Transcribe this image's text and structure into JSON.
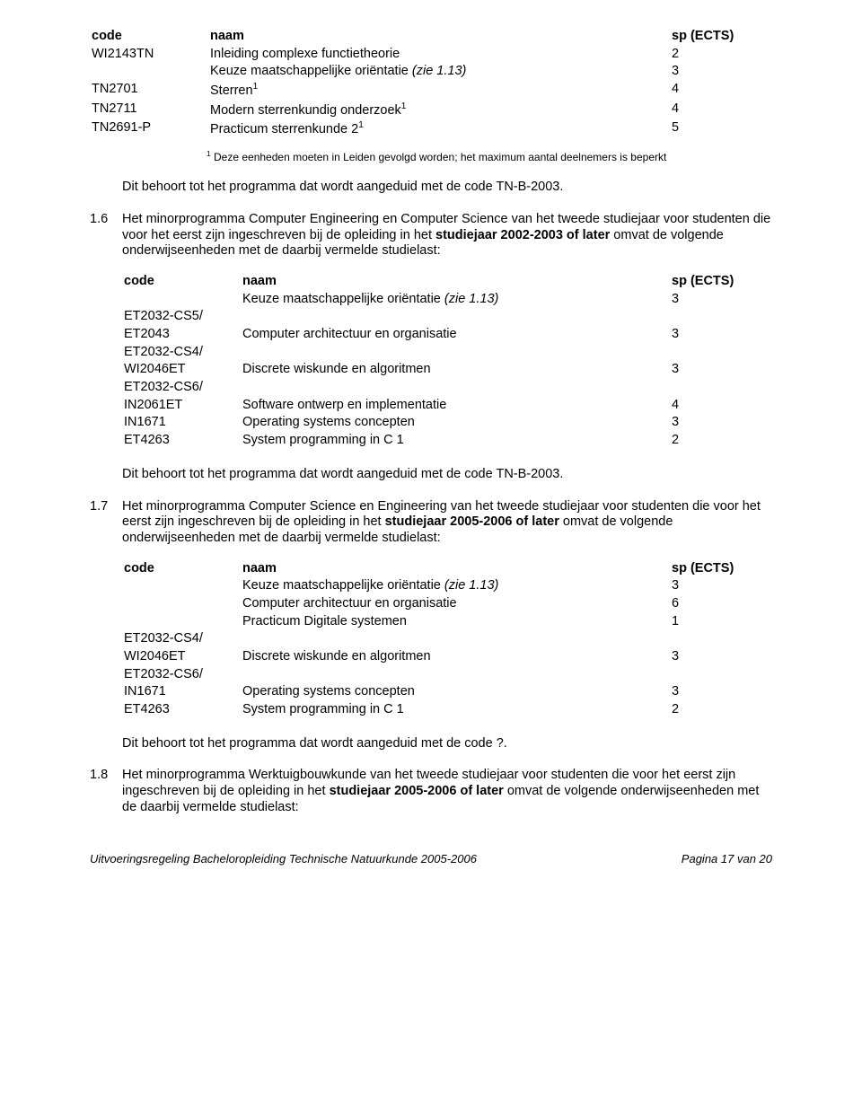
{
  "table1": {
    "header": {
      "code": "code",
      "naam": "naam",
      "sp": "sp (ECTS)"
    },
    "rows": [
      {
        "code": "WI2143TN",
        "naam": "Inleiding complexe functietheorie",
        "sp": "2"
      },
      {
        "code": "",
        "naam_pre": "Keuze maatschappelijke oriëntatie ",
        "naam_it": "(zie 1.13)",
        "sp": "3"
      },
      {
        "code": "TN2701",
        "naam": "Sterren",
        "super": "1",
        "sp": "4"
      },
      {
        "code": "TN2711",
        "naam": "Modern sterrenkundig onderzoek",
        "super": "1",
        "sp": "4"
      },
      {
        "code": "TN2691-P",
        "naam": "Practicum sterrenkunde 2",
        "super": "1",
        "sp": "5"
      }
    ]
  },
  "footnote1": {
    "sup": "1",
    "text": " Deze eenheden moeten in Leiden gevolgd worden; het maximum aantal deelnemers is beperkt"
  },
  "line_tnb2003": "Dit behoort tot het programma dat wordt aangeduid met de code TN-B-2003.",
  "sec16": {
    "num": "1.6",
    "text_pre": "Het minorprogramma Computer Engineering en Computer Science van het tweede studiejaar voor studenten die voor het eerst zijn ingeschreven bij de opleiding in het ",
    "bold": "studiejaar 2002-2003 of later",
    "text_post": " omvat de volgende onderwijseenheden met de daarbij vermelde studielast:"
  },
  "table2": {
    "header": {
      "code": "code",
      "naam": "naam",
      "sp": "sp (ECTS)"
    },
    "rows": [
      {
        "code": "",
        "naam_pre": "Keuze maatschappelijke oriëntatie ",
        "naam_it": "(zie 1.13)",
        "sp": "3"
      },
      {
        "code": "ET2032-CS5/",
        "naam": "",
        "sp": ""
      },
      {
        "code": "ET2043",
        "naam": "Computer architectuur en organisatie",
        "sp": "3"
      },
      {
        "code": "ET2032-CS4/",
        "naam": "",
        "sp": ""
      },
      {
        "code": "WI2046ET",
        "naam": "Discrete wiskunde en algoritmen",
        "sp": "3"
      },
      {
        "code": "ET2032-CS6/",
        "naam": "",
        "sp": ""
      },
      {
        "code": "IN2061ET",
        "naam": "Software ontwerp en implementatie",
        "sp": "4"
      },
      {
        "code": "IN1671",
        "naam": "Operating systems concepten",
        "sp": "3"
      },
      {
        "code": "ET4263",
        "naam": "System programming in C 1",
        "sp": "2"
      }
    ]
  },
  "sec17": {
    "num": "1.7",
    "text_pre": "Het minorprogramma Computer Science en Engineering van het tweede studiejaar voor studenten die voor het eerst zijn ingeschreven bij de opleiding in het ",
    "bold": "studiejaar 2005-2006 of later",
    "text_post": " omvat de volgende onderwijseenheden met de daarbij vermelde studielast:"
  },
  "table3": {
    "header": {
      "code": "code",
      "naam": "naam",
      "sp": "sp (ECTS)"
    },
    "rows": [
      {
        "code": "",
        "naam_pre": "Keuze maatschappelijke oriëntatie ",
        "naam_it": "(zie 1.13)",
        "sp": "3"
      },
      {
        "code": "",
        "naam": "Computer architectuur en organisatie",
        "sp": "6"
      },
      {
        "code": "",
        "naam": "Practicum Digitale systemen",
        "sp": "1"
      },
      {
        "code": "ET2032-CS4/",
        "naam": "",
        "sp": ""
      },
      {
        "code": "WI2046ET",
        "naam": "Discrete wiskunde en algoritmen",
        "sp": "3"
      },
      {
        "code": "ET2032-CS6/",
        "naam": "",
        "sp": ""
      },
      {
        "code": "IN1671",
        "naam": "Operating systems concepten",
        "sp": "3"
      },
      {
        "code": "ET4263",
        "naam": "System programming in C 1",
        "sp": "2"
      }
    ]
  },
  "line_question": "Dit behoort tot het programma dat wordt aangeduid met de code ?.",
  "sec18": {
    "num": "1.8",
    "text_pre": "Het minorprogramma Werktuigbouwkunde van het tweede studiejaar voor studenten die voor het eerst zijn ingeschreven bij de opleiding in het ",
    "bold": "studiejaar 2005-2006 of later",
    "text_post": " omvat de volgende onderwijseenheden met de daarbij vermelde studielast:"
  },
  "footer": {
    "left": "Uitvoeringsregeling Bacheloropleiding Technische Natuurkunde 2005-2006",
    "right": "Pagina 17 van 20"
  }
}
